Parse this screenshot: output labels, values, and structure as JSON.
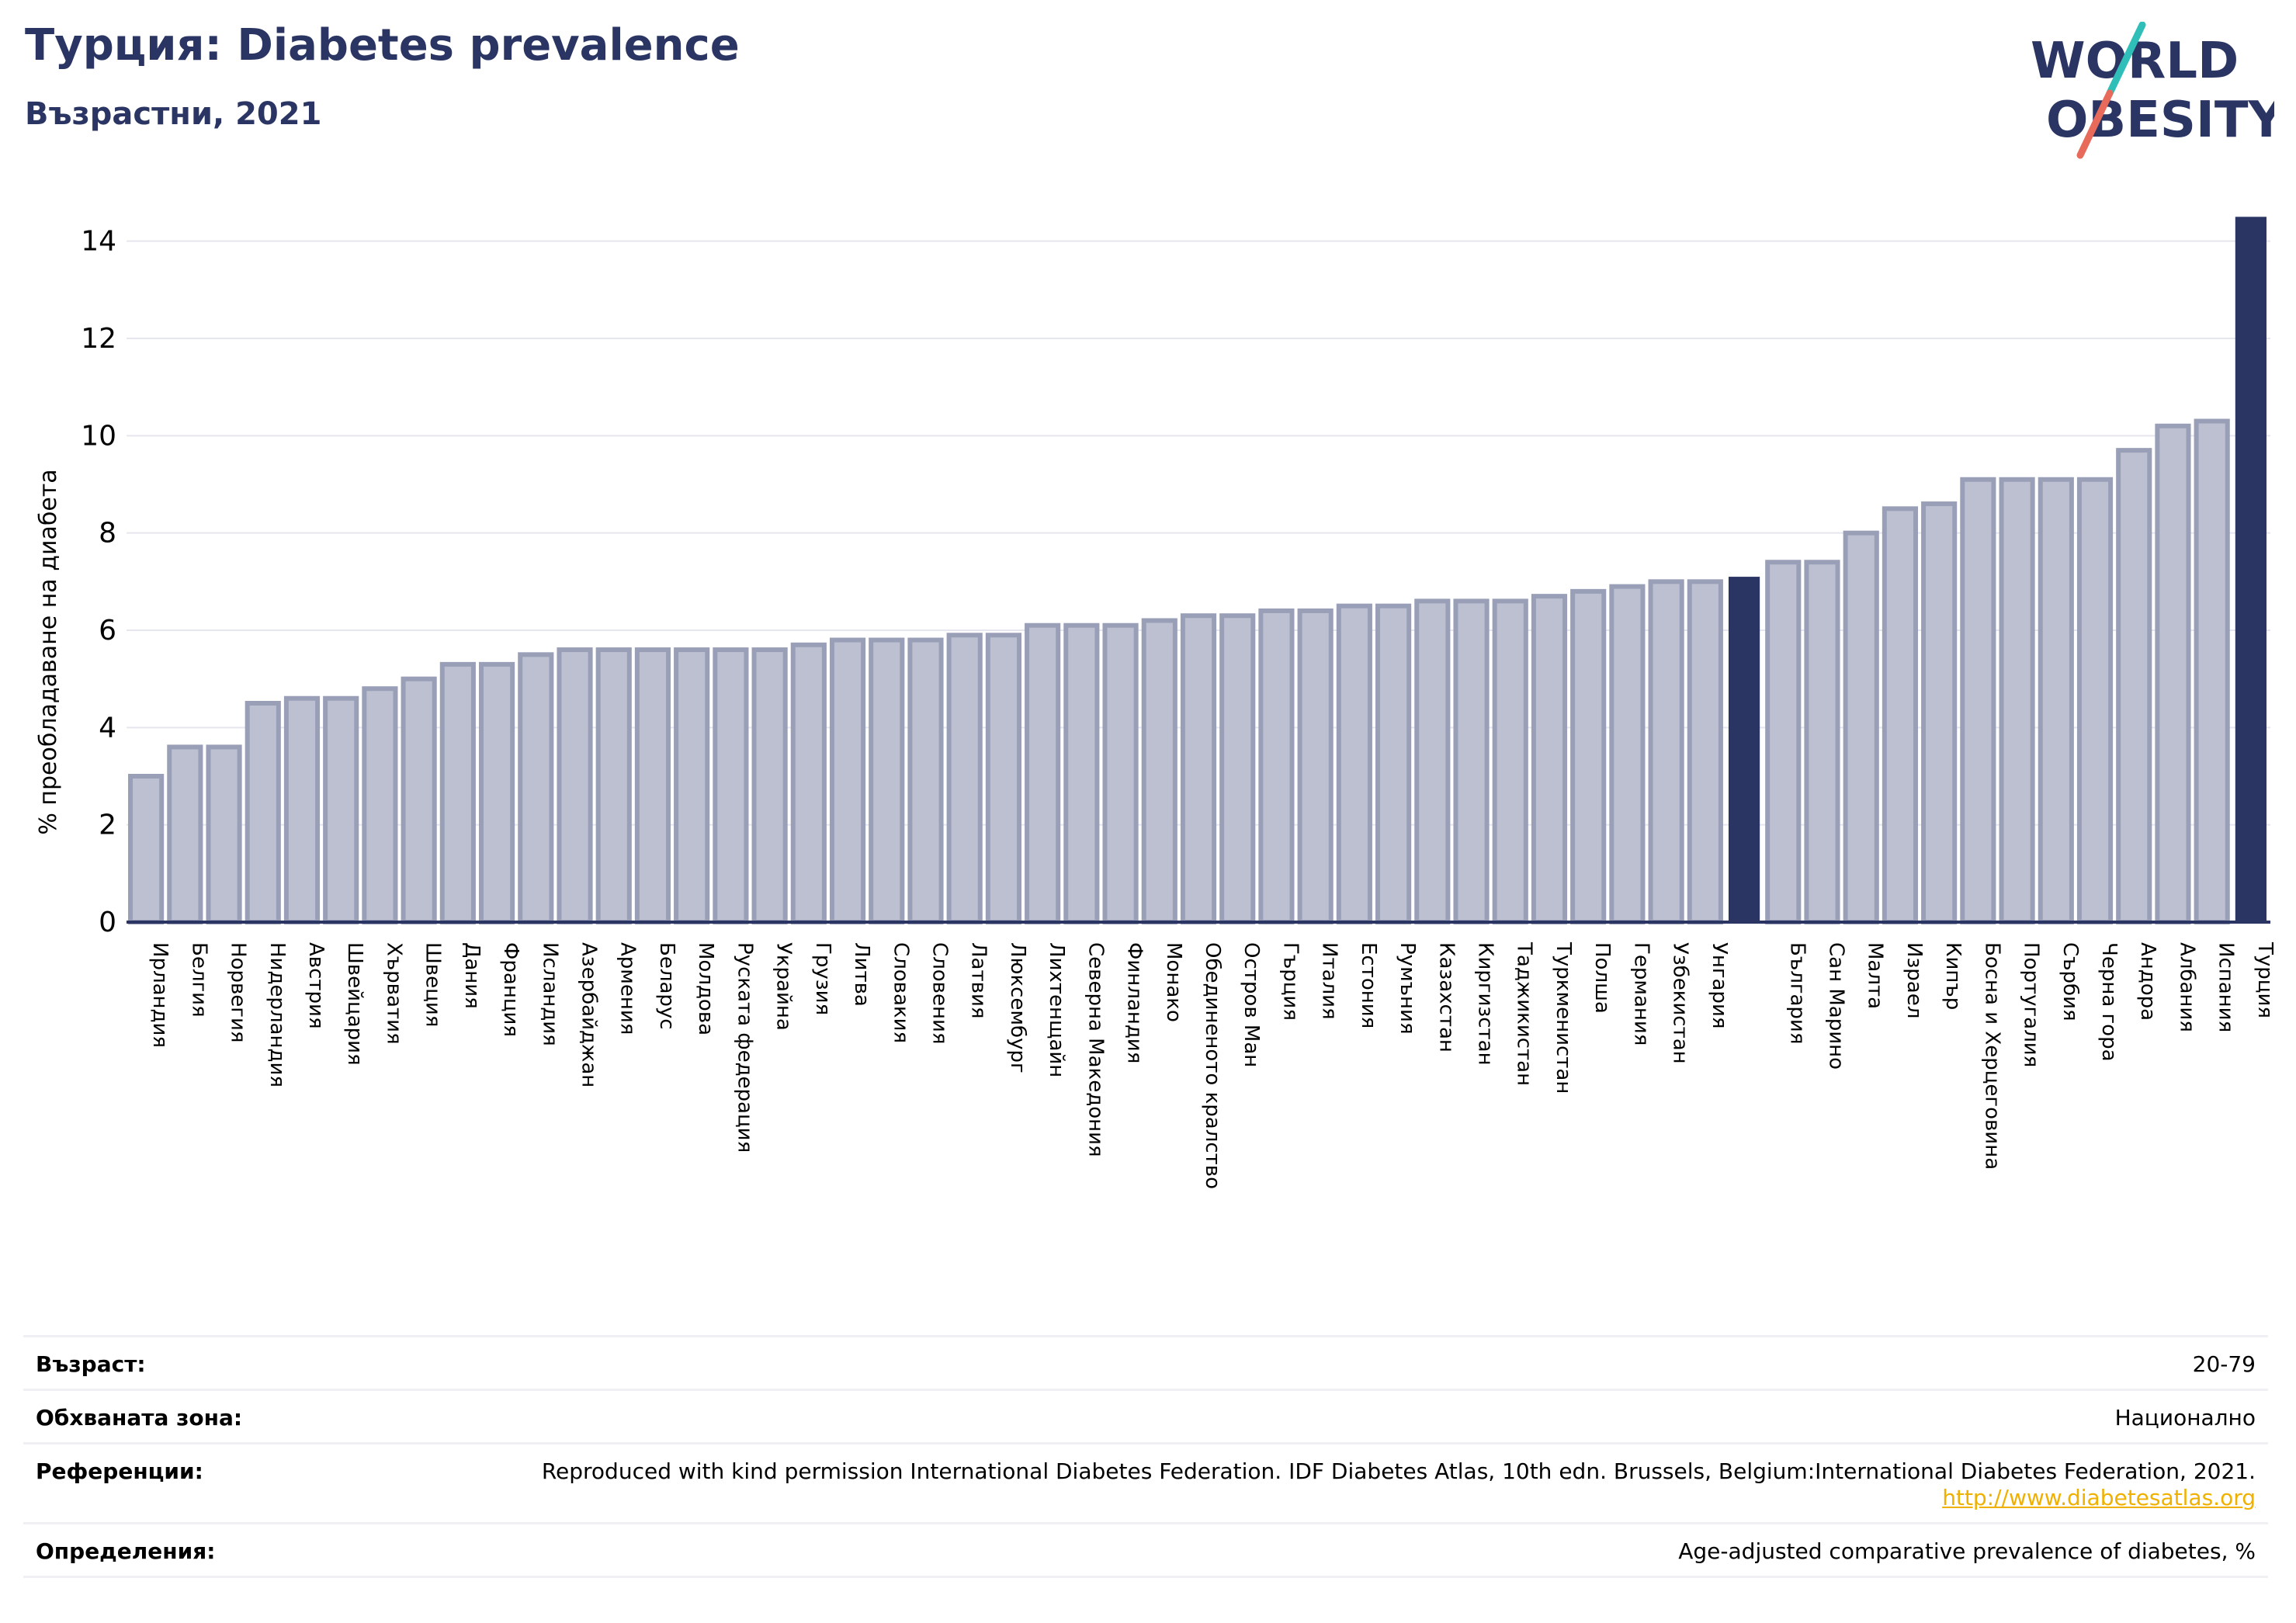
{
  "header": {
    "title": "Турция: Diabetes prevalence",
    "subtitle": "Възрастни, 2021"
  },
  "logo": {
    "line1": "WORLD",
    "line2": "OBESITY"
  },
  "colors": {
    "bar": "#bcc0d0",
    "bar_edge": "#9a9fb8",
    "highlight": "#2a3563",
    "grid": "#e6e6ee",
    "title": "#2a3563",
    "slash_teal": "#2fbfb8",
    "slash_coral": "#e86a5a"
  },
  "chart_data": {
    "type": "bar",
    "ylabel": "% преобладаване на диабета",
    "ylim": [
      0,
      15
    ],
    "yticks": [
      0,
      2,
      4,
      6,
      8,
      10,
      12,
      14
    ],
    "grid": true,
    "highlight": [
      "Турция"
    ],
    "gap_before": [
      "България"
    ],
    "categories": [
      "Ирландия",
      "Белгия",
      "Норвегия",
      "Нидерландия",
      "Австрия",
      "Швейцария",
      "Хърватия",
      "Швеция",
      "Дания",
      "Франция",
      "Исландия",
      "Азербайджан",
      "Армения",
      "Беларус",
      "Молдова",
      "Руската федерация",
      "Украйна",
      "Грузия",
      "Литва",
      "Словакия",
      "Словения",
      "Латвия",
      "Люксембург",
      "Лихтенщайн",
      "Северна Македония",
      "Финландия",
      "Монако",
      "Обединеното кралство",
      "Остров Ман",
      "Гърция",
      "Италия",
      "Естония",
      "Румъния",
      "Казахстан",
      "Киргизстан",
      "Таджикистан",
      "Туркменистан",
      "Полша",
      "Германия",
      "Узбекистан",
      "Унгария",
      "България",
      "Сан Марино",
      "Малта",
      "Израел",
      "Кипър",
      "Босна и Херцеговина",
      "Португалия",
      "Сърбия",
      "Черна гора",
      "Андора",
      "Албания",
      "Испания",
      "Турция"
    ],
    "values": [
      3.0,
      3.6,
      3.6,
      4.5,
      4.6,
      4.6,
      4.8,
      5.0,
      5.3,
      5.3,
      5.5,
      5.6,
      5.6,
      5.6,
      5.6,
      5.6,
      5.6,
      5.7,
      5.8,
      5.8,
      5.8,
      5.9,
      5.9,
      6.1,
      6.1,
      6.1,
      6.2,
      6.3,
      6.3,
      6.4,
      6.4,
      6.5,
      6.5,
      6.6,
      6.6,
      6.6,
      6.7,
      6.8,
      6.9,
      7.0,
      7.0,
      7.4,
      7.4,
      8.0,
      8.5,
      8.6,
      9.1,
      9.1,
      9.1,
      9.1,
      9.7,
      10.2,
      10.3,
      14.5
    ],
    "reference_bar": {
      "value": 7.1,
      "position": "between Унгария and България"
    }
  },
  "meta": {
    "rows": [
      {
        "key": "Възраст:",
        "value": "20-79"
      },
      {
        "key": "Обхваната зона:",
        "value": "Национално"
      },
      {
        "key": "Референции:",
        "value": "Reproduced with kind permission International Diabetes Federation.  IDF Diabetes Atlas, 10th edn. Brussels, Belgium:International Diabetes Federation, 2021.",
        "link": "http://www.diabetesatlas.org"
      },
      {
        "key": "Определения:",
        "value": "Age-adjusted comparative prevalence of diabetes, %"
      }
    ]
  }
}
